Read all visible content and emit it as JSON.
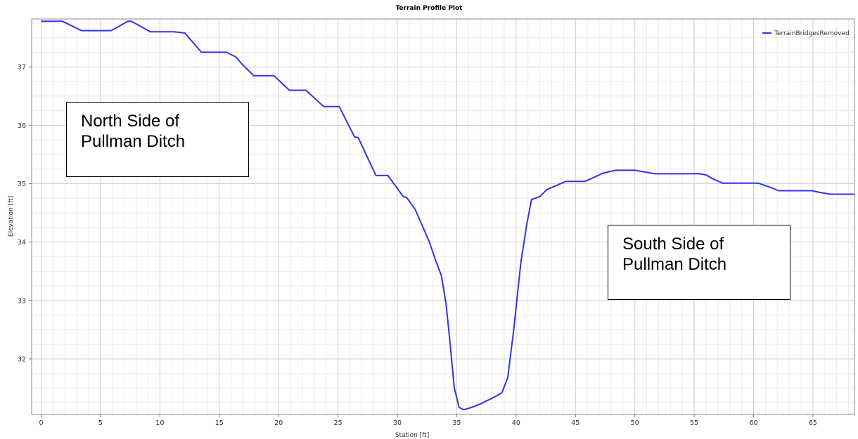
{
  "chart_data": {
    "type": "line",
    "title": "Terrain Profile Plot",
    "xlabel": "Station [ft]",
    "ylabel": "Elevation [ft]",
    "xlim": [
      -0.8,
      68.5
    ],
    "ylim": [
      31.05,
      37.82
    ],
    "grid": true,
    "legend_position": "top-right",
    "x_ticks": [
      "0",
      "5",
      "10",
      "15",
      "20",
      "25",
      "30",
      "35",
      "40",
      "45",
      "50",
      "55",
      "60",
      "65"
    ],
    "y_ticks": [
      "32",
      "33",
      "34",
      "35",
      "36",
      "37"
    ],
    "series": [
      {
        "name": "TerrainBridgesRemoved",
        "color": "#3333ee",
        "x": [
          0,
          1.8,
          3.4,
          5.9,
          7.3,
          7.6,
          9.2,
          11.2,
          12.1,
          13.5,
          15.6,
          16.4,
          16.9,
          17.9,
          19.6,
          20.9,
          22.3,
          23.8,
          25.1,
          26.4,
          26.7,
          28.2,
          29.2,
          30.5,
          30.8,
          31.5,
          32.1,
          32.7,
          33.2,
          33.7,
          34.1,
          34.4,
          34.8,
          35.2,
          35.6,
          36.4,
          37.2,
          38,
          38.8,
          39.3,
          39.8,
          40.4,
          40.9,
          41.3,
          42,
          42.6,
          44.2,
          45.8,
          46.8,
          47.3,
          48.4,
          50,
          51.7,
          53.5,
          55.4,
          56,
          56.6,
          57.4,
          58.5,
          60.4,
          61.5,
          62.1,
          63.5,
          64.9,
          65.6,
          66.5,
          68.5
        ],
        "values": [
          37.78,
          37.78,
          37.62,
          37.62,
          37.78,
          37.78,
          37.6,
          37.6,
          37.58,
          37.25,
          37.25,
          37.17,
          37.05,
          36.85,
          36.85,
          36.6,
          36.6,
          36.32,
          36.32,
          35.8,
          35.79,
          35.14,
          35.14,
          34.78,
          34.76,
          34.56,
          34.28,
          34.0,
          33.7,
          33.43,
          32.95,
          32.35,
          31.5,
          31.17,
          31.13,
          31.18,
          31.25,
          31.33,
          31.42,
          31.68,
          32.5,
          33.65,
          34.3,
          34.73,
          34.78,
          34.9,
          35.04,
          35.04,
          35.13,
          35.18,
          35.23,
          35.23,
          35.17,
          35.17,
          35.17,
          35.15,
          35.08,
          35.01,
          35.01,
          35.01,
          34.93,
          34.88,
          34.88,
          34.88,
          34.85,
          34.82,
          34.82
        ]
      }
    ]
  },
  "annotations": {
    "north": [
      "North Side of",
      "Pullman Ditch"
    ],
    "south": [
      "South Side of",
      "Pullman Ditch"
    ]
  }
}
